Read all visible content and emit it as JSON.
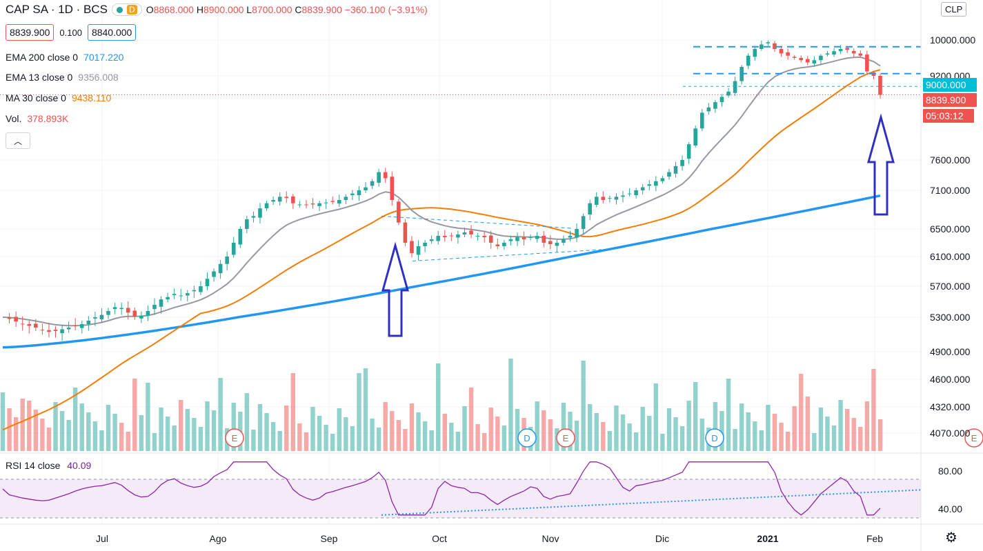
{
  "header": {
    "symbol": "CAP SA · 1D · BCS",
    "d_badge": "D",
    "ohlc": {
      "o_label": "O",
      "o": "8868.000",
      "h_label": "H",
      "h": "8900.000",
      "l_label": "L",
      "l": "8700.000",
      "c_label": "C",
      "c": "8839.900",
      "change": "−360.100 (−3.91%)"
    }
  },
  "quote": {
    "bid": "8839.900",
    "spread": "0.100",
    "ask": "8840.000"
  },
  "indicators": [
    {
      "label": "EMA 200 close 0",
      "value": "7017.220",
      "color": "#2196f3"
    },
    {
      "label": "EMA 13 close 0",
      "value": "9356.008",
      "color": "#9598a1"
    },
    {
      "label": "MA 30 close 0",
      "value": "9438.110",
      "color": "#f57c00"
    },
    {
      "label": "Vol.",
      "value": "378.893K",
      "color": "#ef5350"
    }
  ],
  "rsi": {
    "label": "RSI 14 close",
    "value": "40.09",
    "color": "#7b1fa2"
  },
  "currency_button": "CLP",
  "collapse_icon": "chevron-up-icon",
  "settings_icon": "gear-icon",
  "colors": {
    "up": "#26a69a",
    "down": "#ef5350",
    "ema200": "#2196f3",
    "ema13": "#9598a1",
    "ma30": "#f57c00",
    "rsi": "#8e24aa",
    "annotation": "#3030c0"
  },
  "chart_data": {
    "type": "candlestick",
    "x_ticks": [
      "Jul",
      "Ago",
      "Sep",
      "Oct",
      "Nov",
      "Dic",
      "2021",
      "Feb"
    ],
    "y_ticks": [
      "10000.000",
      "9200.000",
      "7600.000",
      "7100.000",
      "6500.000",
      "6100.000",
      "5700.000",
      "5300.000",
      "4900.000",
      "4600.000",
      "4320.000",
      "4070.000"
    ],
    "price_tags": [
      {
        "value": "9000.000",
        "bg": "#00bcd4"
      },
      {
        "value": "8839.900",
        "bg": "#ef5350"
      },
      {
        "value": "05:03:12",
        "bg": "#ef5350"
      }
    ],
    "rsi_ticks": [
      "80.00",
      "40.00"
    ],
    "rsi_band": [
      30,
      70
    ],
    "events": [
      {
        "month_index": 1.2,
        "label": "E"
      },
      {
        "month_index": 3.85,
        "label": "D"
      },
      {
        "month_index": 4.2,
        "label": "E"
      },
      {
        "month_index": 5.55,
        "label": "D"
      },
      {
        "month_index": 7.9,
        "label": "E"
      }
    ],
    "close_series": [
      5300,
      5280,
      5250,
      5220,
      5200,
      5180,
      5150,
      5130,
      5140,
      5160,
      5180,
      5200,
      5220,
      5260,
      5300,
      5330,
      5380,
      5430,
      5420,
      5360,
      5310,
      5320,
      5380,
      5460,
      5530,
      5560,
      5600,
      5580,
      5610,
      5650,
      5700,
      5800,
      5900,
      6000,
      6100,
      6300,
      6500,
      6650,
      6700,
      6820,
      6900,
      6950,
      7000,
      6980,
      6900,
      6880,
      6870,
      6880,
      6900,
      6910,
      6920,
      6950,
      7000,
      7050,
      7100,
      7150,
      7250,
      7400,
      7300,
      6950,
      6600,
      6300,
      6150,
      6250,
      6300,
      6350,
      6400,
      6380,
      6400,
      6420,
      6450,
      6420,
      6400,
      6380,
      6300,
      6250,
      6300,
      6350,
      6380,
      6350,
      6380,
      6400,
      6300,
      6280,
      6300,
      6350,
      6400,
      6500,
      6700,
      6900,
      7000,
      6950,
      6980,
      7000,
      7020,
      7050,
      7100,
      7150,
      7200,
      7250,
      7300,
      7400,
      7500,
      7600,
      7900,
      8200,
      8500,
      8600,
      8700,
      8800,
      8900,
      9100,
      9400,
      9650,
      9800,
      9900,
      9950,
      9800,
      9700,
      9650,
      9600,
      9550,
      9500,
      9550,
      9650,
      9700,
      9750,
      9800,
      9780,
      9700,
      9650,
      9300,
      9200,
      8840
    ],
    "ema200_range": [
      4950,
      7017.22
    ],
    "ema13_last": 9356.008,
    "ma30_last": 9438.11,
    "rsi_last": 40.09
  }
}
